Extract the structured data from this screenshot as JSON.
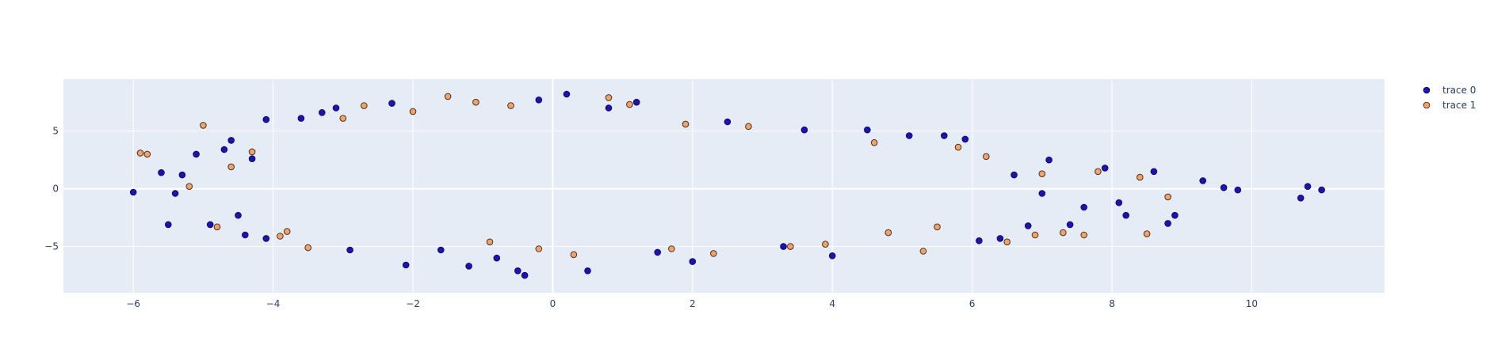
{
  "colors": {
    "plot_background": "#e5ecf6",
    "grid": "#ffffff",
    "text": "#2a3f5f",
    "trace0_fill": "#1f14a8",
    "trace0_edge": "#0d0870",
    "trace1_fill": "#f2a36b",
    "trace1_edge": "#4a3220"
  },
  "chart_data": {
    "type": "scatter",
    "title": "",
    "xlabel": "",
    "ylabel": "",
    "xlim": [
      -7,
      11.9
    ],
    "ylim": [
      -9,
      9.5
    ],
    "x_ticks": [
      -6,
      -4,
      -2,
      0,
      2,
      4,
      6,
      8,
      10
    ],
    "x_tick_labels": [
      "−6",
      "−4",
      "−2",
      "0",
      "2",
      "4",
      "6",
      "8",
      "10"
    ],
    "y_ticks": [
      -5,
      0,
      5
    ],
    "y_tick_labels": [
      "−5",
      "0",
      "5"
    ],
    "grid": true,
    "legend_placement": "top-right outside",
    "series": [
      {
        "name": "trace 0",
        "points": [
          [
            -6.0,
            -0.3
          ],
          [
            -5.5,
            -3.1
          ],
          [
            -5.4,
            -0.4
          ],
          [
            -5.6,
            1.4
          ],
          [
            -5.3,
            1.2
          ],
          [
            -5.1,
            3.0
          ],
          [
            -4.9,
            -3.1
          ],
          [
            -4.6,
            4.2
          ],
          [
            -4.7,
            3.4
          ],
          [
            -4.5,
            -2.3
          ],
          [
            -4.4,
            -4.0
          ],
          [
            -4.3,
            2.6
          ],
          [
            -4.1,
            6.0
          ],
          [
            -4.1,
            -4.3
          ],
          [
            -3.6,
            6.1
          ],
          [
            -3.3,
            6.6
          ],
          [
            -3.1,
            7.0
          ],
          [
            -2.9,
            -5.3
          ],
          [
            -2.3,
            7.4
          ],
          [
            -2.1,
            -6.6
          ],
          [
            -1.6,
            -5.3
          ],
          [
            -1.2,
            -6.7
          ],
          [
            -0.8,
            -6.0
          ],
          [
            -0.5,
            -7.1
          ],
          [
            -0.4,
            -7.5
          ],
          [
            -0.2,
            7.7
          ],
          [
            0.2,
            8.2
          ],
          [
            0.5,
            -7.1
          ],
          [
            0.8,
            7.0
          ],
          [
            1.2,
            7.5
          ],
          [
            1.5,
            -5.5
          ],
          [
            2.0,
            -6.3
          ],
          [
            2.5,
            5.8
          ],
          [
            3.3,
            -5.0
          ],
          [
            3.6,
            5.1
          ],
          [
            4.0,
            -5.8
          ],
          [
            4.5,
            5.1
          ],
          [
            5.1,
            4.6
          ],
          [
            5.6,
            4.6
          ],
          [
            5.9,
            4.3
          ],
          [
            6.1,
            -4.5
          ],
          [
            6.4,
            -4.3
          ],
          [
            6.8,
            -3.2
          ],
          [
            7.1,
            2.5
          ],
          [
            7.4,
            -3.1
          ],
          [
            7.9,
            1.8
          ],
          [
            8.2,
            -2.3
          ],
          [
            8.6,
            1.5
          ],
          [
            8.9,
            -2.3
          ],
          [
            9.3,
            0.7
          ],
          [
            9.6,
            0.1
          ],
          [
            9.8,
            -0.1
          ],
          [
            10.7,
            -0.8
          ],
          [
            10.8,
            0.2
          ],
          [
            11.0,
            -0.1
          ],
          [
            8.8,
            -3.0
          ],
          [
            8.1,
            -1.2
          ],
          [
            7.6,
            -1.6
          ],
          [
            7.0,
            -0.4
          ],
          [
            6.6,
            1.2
          ]
        ]
      },
      {
        "name": "trace 1",
        "points": [
          [
            -5.8,
            3.0
          ],
          [
            -5.0,
            5.5
          ],
          [
            -4.8,
            -3.3
          ],
          [
            -4.6,
            1.9
          ],
          [
            -3.9,
            -4.1
          ],
          [
            -3.5,
            -5.1
          ],
          [
            -3.0,
            6.1
          ],
          [
            -2.7,
            7.2
          ],
          [
            -2.0,
            6.7
          ],
          [
            -1.5,
            8.0
          ],
          [
            -1.1,
            7.5
          ],
          [
            -0.6,
            7.2
          ],
          [
            -0.2,
            -5.2
          ],
          [
            0.3,
            -5.7
          ],
          [
            0.8,
            7.9
          ],
          [
            1.1,
            7.3
          ],
          [
            1.7,
            -5.2
          ],
          [
            2.3,
            -5.6
          ],
          [
            2.8,
            5.4
          ],
          [
            3.4,
            -5.0
          ],
          [
            3.9,
            -4.8
          ],
          [
            4.6,
            4.0
          ],
          [
            5.3,
            -5.4
          ],
          [
            5.8,
            3.6
          ],
          [
            6.5,
            -4.6
          ],
          [
            6.9,
            -4.0
          ],
          [
            7.3,
            -3.8
          ],
          [
            7.8,
            1.5
          ],
          [
            8.4,
            1.0
          ],
          [
            8.8,
            -0.7
          ],
          [
            8.5,
            -3.9
          ],
          [
            7.6,
            -4.0
          ],
          [
            7.0,
            1.3
          ],
          [
            6.2,
            2.8
          ],
          [
            5.5,
            -3.3
          ],
          [
            4.8,
            -3.8
          ],
          [
            -5.9,
            3.1
          ],
          [
            -5.2,
            0.2
          ],
          [
            -4.3,
            3.2
          ],
          [
            -3.8,
            -3.7
          ],
          [
            -0.9,
            -4.6
          ],
          [
            1.9,
            5.6
          ]
        ]
      }
    ]
  },
  "legend": {
    "items": [
      {
        "label": "trace 0"
      },
      {
        "label": "trace 1"
      }
    ]
  }
}
